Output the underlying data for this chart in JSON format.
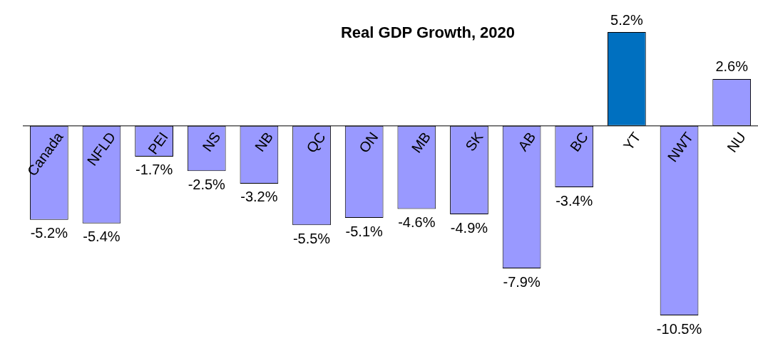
{
  "chart_data": {
    "type": "bar",
    "title": "Real GDP Growth, 2020",
    "categories": [
      "Canada",
      "NFLD",
      "PEI",
      "NS",
      "NB",
      "QC",
      "ON",
      "MB",
      "SK",
      "AB",
      "BC",
      "YT",
      "NWT",
      "NU"
    ],
    "values": [
      -5.2,
      -5.4,
      -1.7,
      -2.5,
      -3.2,
      -5.5,
      -5.1,
      -4.6,
      -4.9,
      -7.9,
      -3.4,
      5.2,
      -10.5,
      2.6
    ],
    "colors": [
      "#9999ff",
      "#9999ff",
      "#9999ff",
      "#9999ff",
      "#9999ff",
      "#9999ff",
      "#9999ff",
      "#9999ff",
      "#9999ff",
      "#9999ff",
      "#9999ff",
      "#0070c0",
      "#9999ff",
      "#9999ff"
    ],
    "value_labels": [
      "-5.2%",
      "-5.4%",
      "-1.7%",
      "-2.5%",
      "-3.2%",
      "-5.5%",
      "-5.1%",
      "-4.6%",
      "-4.9%",
      "-7.9%",
      "-3.4%",
      "5.2%",
      "-10.5%",
      "2.6%"
    ]
  }
}
